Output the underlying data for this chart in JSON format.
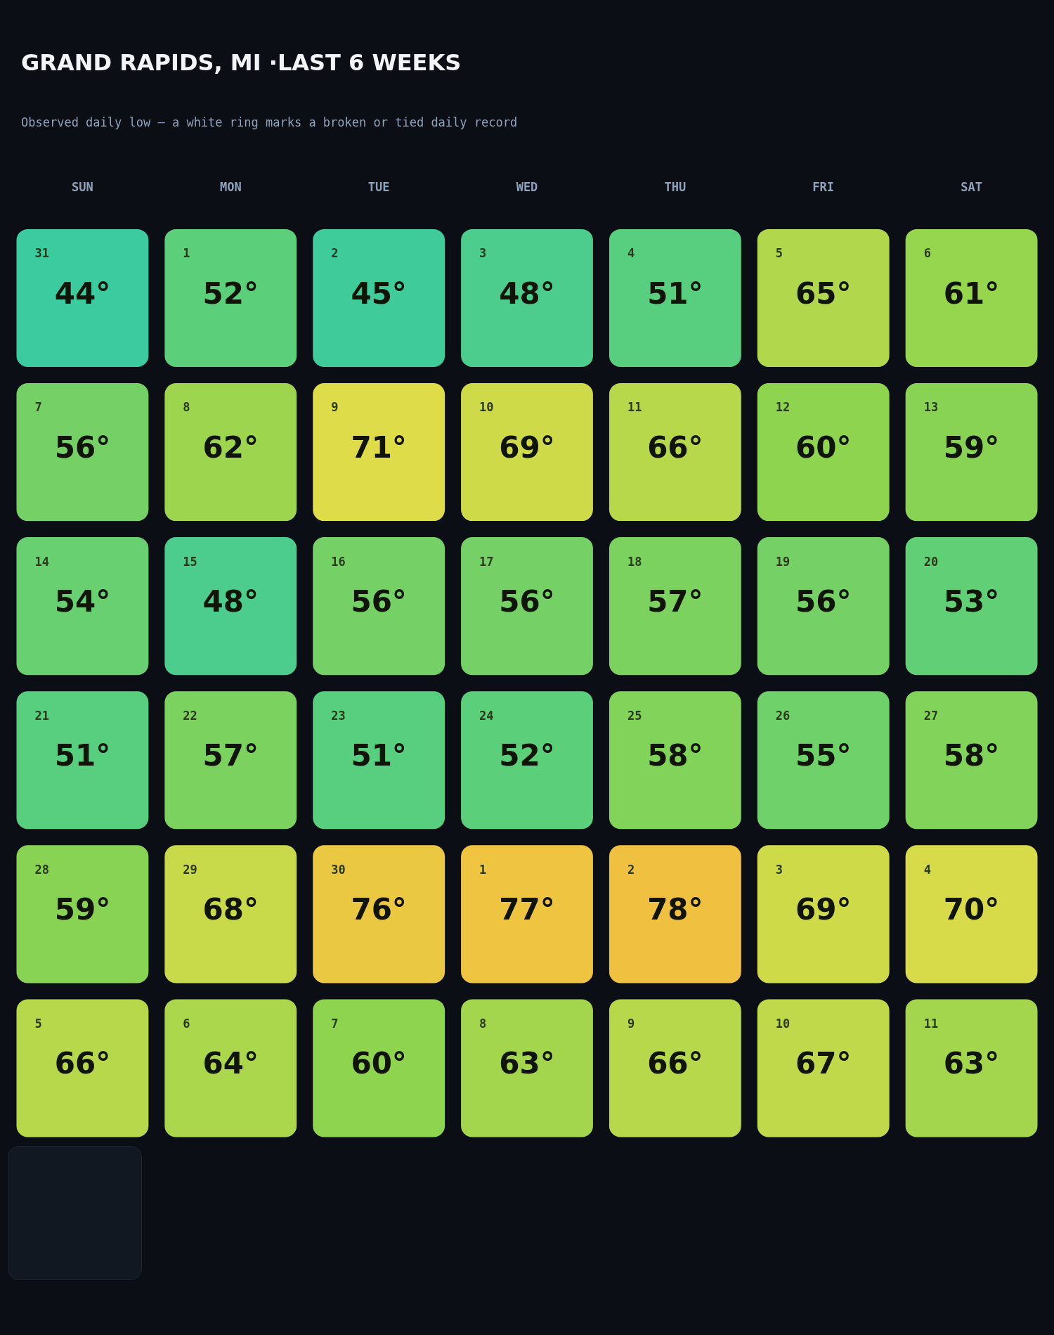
{
  "chart_data": {
    "type": "heatmap",
    "title": "GRAND RAPIDS, MI ·LAST 6 WEEKS",
    "subtitle": "Observed daily low — a white ring marks a broken or tied daily record",
    "categories": [
      "SUN",
      "MON",
      "TUE",
      "WED",
      "THU",
      "FRI",
      "SAT"
    ],
    "y_categories": [
      null,
      null,
      null,
      null,
      null,
      null
    ],
    "cells": [
      [
        44,
        52,
        45,
        48,
        51,
        65,
        61
      ],
      [
        56,
        62,
        71,
        69,
        66,
        60,
        59
      ],
      [
        54,
        48,
        56,
        56,
        57,
        56,
        53
      ],
      [
        51,
        57,
        51,
        52,
        58,
        55,
        58
      ],
      [
        59,
        68,
        76,
        77,
        78,
        69,
        70
      ],
      [
        66,
        64,
        60,
        63,
        66,
        67,
        63
      ]
    ],
    "cell_labels": [
      [
        "44°",
        "52°",
        "45°",
        "48°",
        "51°",
        "65°",
        "61°"
      ],
      [
        "56°",
        "62°",
        "71°",
        "69°",
        "66°",
        "60°",
        "59°"
      ],
      [
        "54°",
        "48°",
        "56°",
        "56°",
        "57°",
        "56°",
        "53°"
      ],
      [
        "51°",
        "57°",
        "51°",
        "52°",
        "58°",
        "55°",
        "58°"
      ],
      [
        "59°",
        "68°",
        "76°",
        "77°",
        "78°",
        "69°",
        "70°"
      ],
      [
        "66°",
        "64°",
        "60°",
        "63°",
        "66°",
        "67°",
        "63°"
      ]
    ],
    "annotations": [
      "31",
      "1",
      "2",
      "3",
      "4",
      "5",
      "6",
      "7",
      "8",
      "9",
      "10",
      "11",
      "12",
      "13",
      "14",
      "15",
      "16",
      "17",
      "18",
      "19",
      "20",
      "21",
      "22",
      "23",
      "24",
      "25",
      "26",
      "27",
      "28",
      "29",
      "30",
      "1",
      "2",
      "3",
      "4",
      "5",
      "6",
      "7",
      "8",
      "9",
      "10",
      "11"
    ]
  }
}
